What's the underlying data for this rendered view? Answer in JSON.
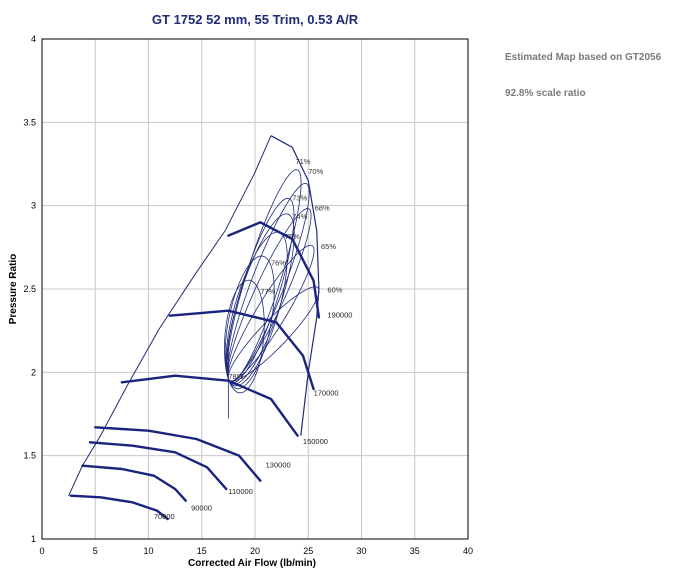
{
  "side_notes": {
    "line1": "Estimated Map based on GT2056",
    "line2": "92.8% scale ratio"
  },
  "colors": {
    "line": "#1f2a7a",
    "speed_line": "#1a237e",
    "grid": "#c8c8c8",
    "title": "#1f2a7a",
    "text": "#000000"
  },
  "chart_data": {
    "type": "line",
    "title": "GT  1752  52 mm, 55 Trim, 0.53 A/R",
    "xlabel": "Corrected Air Flow (lb/min)",
    "ylabel": "Pressure Ratio",
    "xlim": [
      0,
      40
    ],
    "ylim": [
      1,
      4
    ],
    "xticks": [
      "0",
      "5",
      "10",
      "15",
      "20",
      "25",
      "30",
      "35",
      "40"
    ],
    "yticks": [
      "1",
      "1.5",
      "2",
      "2.5",
      "3",
      "3.5",
      "4"
    ],
    "grid": true,
    "speed_lines": [
      {
        "name": "70000",
        "x": [
          2.7,
          5.5,
          8.5,
          10.8,
          11.8
        ],
        "y": [
          1.26,
          1.25,
          1.22,
          1.17,
          1.12
        ],
        "label_x": 10.5,
        "label_y": 1.12
      },
      {
        "name": "90000",
        "x": [
          3.8,
          7.5,
          10.5,
          12.5,
          13.5
        ],
        "y": [
          1.44,
          1.42,
          1.38,
          1.3,
          1.23
        ],
        "label_x": 14.0,
        "label_y": 1.17
      },
      {
        "name": "110000",
        "x": [
          4.5,
          8.5,
          12.5,
          15.5,
          17.3
        ],
        "y": [
          1.58,
          1.56,
          1.52,
          1.43,
          1.3
        ],
        "label_x": 17.5,
        "label_y": 1.27
      },
      {
        "name": "130000",
        "x": [
          5.0,
          10.0,
          14.5,
          18.5,
          20.5
        ],
        "y": [
          1.67,
          1.65,
          1.6,
          1.5,
          1.35
        ],
        "label_x": 21.0,
        "label_y": 1.43
      },
      {
        "name": "150000",
        "x": [
          7.5,
          12.5,
          17.5,
          21.5,
          24.0
        ],
        "y": [
          1.94,
          1.98,
          1.95,
          1.84,
          1.62
        ],
        "label_x": 24.5,
        "label_y": 1.57
      },
      {
        "name": "170000",
        "x": [
          12.0,
          17.5,
          22.0,
          24.5,
          25.5
        ],
        "y": [
          2.34,
          2.37,
          2.3,
          2.1,
          1.9
        ],
        "label_x": 25.5,
        "label_y": 1.86
      },
      {
        "name": "190000",
        "x": [
          17.5,
          20.5,
          23.5,
          25.5,
          26.0
        ],
        "y": [
          2.82,
          2.9,
          2.8,
          2.55,
          2.33
        ],
        "label_x": 26.8,
        "label_y": 2.33
      }
    ],
    "efficiency_contours": [
      {
        "name": "60%",
        "x": 26.0,
        "y": 2.5,
        "label_x": 26.8,
        "label_y": 2.48
      },
      {
        "name": "65%",
        "x": 25.5,
        "y": 2.75,
        "label_x": 26.2,
        "label_y": 2.74
      },
      {
        "name": "68%",
        "x": 25.2,
        "y": 2.97,
        "label_x": 25.6,
        "label_y": 2.97
      },
      {
        "name": "70%",
        "x": 25.0,
        "y": 3.12,
        "label_x": 25.0,
        "label_y": 3.19
      },
      {
        "name": "71%",
        "x": 24.2,
        "y": 3.2,
        "label_x": 23.8,
        "label_y": 3.25
      },
      {
        "name": "73%",
        "x": 23.5,
        "y": 3.02,
        "label_x": 23.5,
        "label_y": 3.03
      },
      {
        "name": "74%",
        "x": 23.5,
        "y": 2.92,
        "label_x": 23.5,
        "label_y": 2.92
      },
      {
        "name": "75%",
        "x": 22.8,
        "y": 2.8,
        "label_x": 22.8,
        "label_y": 2.8
      },
      {
        "name": "76%",
        "x": 21.5,
        "y": 2.64,
        "label_x": 21.5,
        "label_y": 2.64
      },
      {
        "name": "77%",
        "x": 20.5,
        "y": 2.47,
        "label_x": 20.5,
        "label_y": 2.47
      },
      {
        "name": "78%",
        "x": 17.5,
        "y": 1.96,
        "label_x": 17.5,
        "label_y": 1.96
      }
    ],
    "surge_line": {
      "x": [
        2.5,
        3.8,
        5.5,
        8.0,
        11.0,
        14.5,
        17.2,
        20.0,
        21.5
      ],
      "y": [
        1.26,
        1.44,
        1.62,
        1.92,
        2.26,
        2.6,
        2.85,
        3.2,
        3.42
      ]
    },
    "choke_line": {
      "x": [
        21.5,
        23.5,
        25.0,
        25.8,
        26.0,
        25.8,
        25.0,
        24.3
      ],
      "y": [
        3.42,
        3.35,
        3.15,
        2.85,
        2.5,
        2.33,
        2.0,
        1.62
      ]
    }
  }
}
